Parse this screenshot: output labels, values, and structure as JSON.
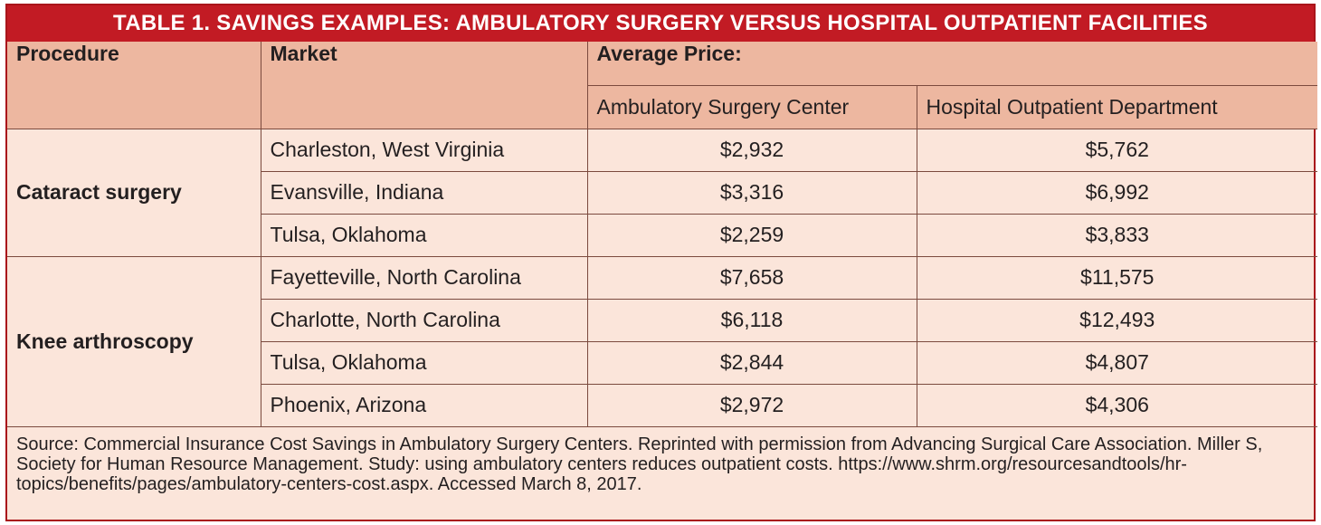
{
  "title": "TABLE 1.  SAVINGS EXAMPLES:  AMBULATORY SURGERY VERSUS HOSPITAL OUTPATIENT FACILITIES",
  "headers": {
    "procedure": "Procedure",
    "market": "Market",
    "average_price": "Average Price:",
    "asc": "Ambulatory Surgery Center",
    "hopd": "Hospital Outpatient Department"
  },
  "groups": [
    {
      "procedure": "Cataract surgery",
      "rows": [
        {
          "market": "Charleston, West Virginia",
          "asc": "$2,932",
          "hopd": "$5,762"
        },
        {
          "market": "Evansville, Indiana",
          "asc": "$3,316",
          "hopd": "$6,992"
        },
        {
          "market": "Tulsa, Oklahoma",
          "asc": "$2,259",
          "hopd": "$3,833"
        }
      ]
    },
    {
      "procedure": "Knee arthroscopy",
      "rows": [
        {
          "market": "Fayetteville, North Carolina",
          "asc": "$7,658",
          "hopd": "$11,575"
        },
        {
          "market": "Charlotte, North Carolina",
          "asc": "$6,118",
          "hopd": "$12,493"
        },
        {
          "market": "Tulsa, Oklahoma",
          "asc": "$2,844",
          "hopd": "$4,807"
        },
        {
          "market": "Phoenix, Arizona",
          "asc": "$2,972",
          "hopd": "$4,306"
        }
      ]
    }
  ],
  "source": "Source: Commercial Insurance Cost Savings in Ambulatory Surgery Centers. Reprinted with permission from Advancing Surgical Care Association. Miller S, Society for Human Resource Management. Study: using ambulatory centers reduces outpatient costs. https://www.shrm.org/resourcesandtools/hr-topics/benefits/pages/ambulatory-centers-cost.aspx. Accessed March 8, 2017."
}
